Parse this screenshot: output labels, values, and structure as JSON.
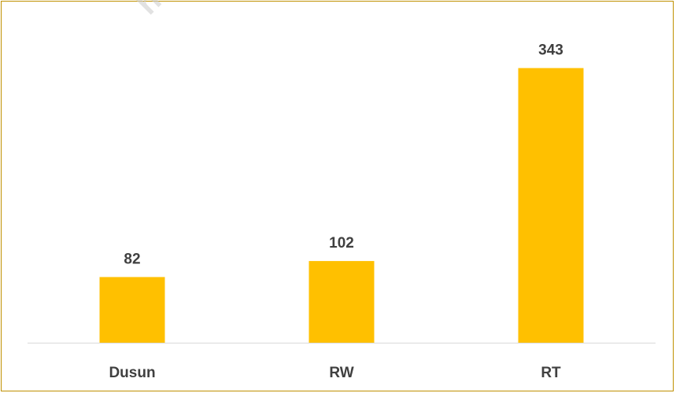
{
  "watermark_text": "http",
  "chart_data": {
    "type": "bar",
    "categories": [
      "Dusun",
      "RW",
      "RT"
    ],
    "values": [
      82,
      102,
      343
    ],
    "title": "",
    "xlabel": "",
    "ylabel": "",
    "ylim": [
      0,
      375
    ],
    "grid": false,
    "legend": "none",
    "bar_color": "#ffc000",
    "axis_color": "#d9d9d9",
    "label_color": "#404040",
    "frame_color": "#bf9000"
  }
}
